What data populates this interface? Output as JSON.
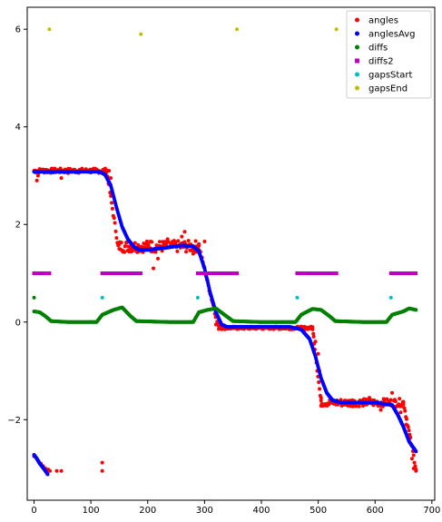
{
  "chart_data": {
    "type": "scatter",
    "title": "",
    "xlabel": "",
    "ylabel": "",
    "xlim": [
      -12,
      705
    ],
    "ylim": [
      -3.65,
      6.45
    ],
    "xticks": [
      0,
      100,
      200,
      300,
      400,
      500,
      600,
      700
    ],
    "xtick_labels": [
      "0",
      "100",
      "200",
      "300",
      "400",
      "500",
      "600",
      "700"
    ],
    "yticks": [
      -2,
      0,
      2,
      4,
      6
    ],
    "ytick_labels": [
      "−2",
      "0",
      "2",
      "4",
      "6"
    ],
    "grid": false,
    "legend_position": "top-right",
    "series": [
      {
        "name": "angles",
        "color": "#ff0000",
        "marker": "circle",
        "description_points": "noisy step signal",
        "segments": [
          {
            "x0": 0,
            "x1": 128,
            "y": 3.1,
            "noise": 0.05
          },
          {
            "x0": 128,
            "x1": 148,
            "y_from": 3.1,
            "y_to": 1.55
          },
          {
            "x0": 148,
            "x1": 290,
            "y": 1.55,
            "noise": 0.12
          },
          {
            "x0": 290,
            "x1": 325,
            "y_from": 1.55,
            "y_to": -0.12
          },
          {
            "x0": 325,
            "x1": 490,
            "y": -0.12,
            "noise": 0.03
          },
          {
            "x0": 490,
            "x1": 505,
            "y_from": -0.12,
            "y_to": -1.65
          },
          {
            "x0": 505,
            "x1": 650,
            "y": -1.65,
            "noise": 0.08
          },
          {
            "x0": 650,
            "x1": 672,
            "y_from": -1.65,
            "y_to": -3.0
          }
        ],
        "points": [
          [
            0,
            -2.75
          ],
          [
            5,
            -2.8
          ],
          [
            8,
            -2.85
          ],
          [
            12,
            -2.9
          ],
          [
            16,
            -2.95
          ],
          [
            20,
            -3.0
          ],
          [
            25,
            -3.02
          ],
          [
            28,
            -3.05
          ],
          [
            40,
            -3.05
          ],
          [
            48,
            -3.05
          ],
          [
            120,
            -2.88
          ],
          [
            120,
            -3.05
          ],
          [
            5,
            2.9
          ],
          [
            7,
            3.0
          ],
          [
            10,
            3.1
          ],
          [
            20,
            3.12
          ],
          [
            48,
            2.95
          ],
          [
            60,
            3.05
          ],
          [
            80,
            3.12
          ],
          [
            110,
            3.12
          ],
          [
            132,
            3.1
          ],
          [
            135,
            2.95
          ],
          [
            150,
            1.5
          ],
          [
            160,
            1.55
          ],
          [
            180,
            1.45
          ],
          [
            200,
            1.55
          ],
          [
            205,
            1.65
          ],
          [
            210,
            1.1
          ],
          [
            218,
            1.3
          ],
          [
            235,
            1.7
          ],
          [
            260,
            1.75
          ],
          [
            265,
            1.85
          ],
          [
            280,
            1.4
          ],
          [
            290,
            1.6
          ],
          [
            300,
            1.65
          ],
          [
            320,
            -0.05
          ],
          [
            330,
            -0.12
          ],
          [
            350,
            -0.12
          ],
          [
            400,
            -0.1
          ],
          [
            450,
            -0.12
          ],
          [
            485,
            -0.12
          ],
          [
            490,
            -0.15
          ],
          [
            492,
            -0.3
          ],
          [
            495,
            -0.4
          ],
          [
            500,
            -0.65
          ],
          [
            502,
            -1.0
          ],
          [
            505,
            -1.55
          ],
          [
            510,
            -1.7
          ],
          [
            560,
            -1.6
          ],
          [
            590,
            -1.55
          ],
          [
            610,
            -1.8
          ],
          [
            630,
            -1.45
          ],
          [
            645,
            -1.85
          ],
          [
            655,
            -2.1
          ],
          [
            660,
            -2.4
          ],
          [
            665,
            -2.8
          ],
          [
            668,
            -3.0
          ],
          [
            672,
            -3.05
          ]
        ]
      },
      {
        "name": "anglesAvg",
        "color": "#0000ff",
        "marker": "circle",
        "points": [
          [
            0,
            3.08
          ],
          [
            60,
            3.08
          ],
          [
            115,
            3.08
          ],
          [
            125,
            3.02
          ],
          [
            135,
            2.8
          ],
          [
            145,
            2.35
          ],
          [
            155,
            1.95
          ],
          [
            165,
            1.7
          ],
          [
            175,
            1.55
          ],
          [
            185,
            1.48
          ],
          [
            200,
            1.48
          ],
          [
            230,
            1.52
          ],
          [
            260,
            1.57
          ],
          [
            280,
            1.55
          ],
          [
            290,
            1.45
          ],
          [
            300,
            1.1
          ],
          [
            310,
            0.6
          ],
          [
            320,
            0.2
          ],
          [
            330,
            -0.05
          ],
          [
            340,
            -0.1
          ],
          [
            360,
            -0.1
          ],
          [
            400,
            -0.1
          ],
          [
            450,
            -0.1
          ],
          [
            470,
            -0.15
          ],
          [
            485,
            -0.35
          ],
          [
            495,
            -0.7
          ],
          [
            505,
            -1.15
          ],
          [
            515,
            -1.45
          ],
          [
            525,
            -1.6
          ],
          [
            540,
            -1.65
          ],
          [
            600,
            -1.65
          ],
          [
            630,
            -1.7
          ],
          [
            640,
            -1.9
          ],
          [
            650,
            -2.15
          ],
          [
            660,
            -2.45
          ],
          [
            672,
            -2.65
          ]
        ],
        "extra_points": [
          [
            0,
            -2.72
          ],
          [
            5,
            -2.8
          ],
          [
            10,
            -2.9
          ],
          [
            15,
            -2.97
          ],
          [
            20,
            -3.05
          ],
          [
            24,
            -3.12
          ]
        ]
      },
      {
        "name": "diffs",
        "color": "#008000",
        "marker": "circle",
        "points": [
          [
            0,
            0.5
          ],
          [
            0,
            0.22
          ],
          [
            10,
            0.2
          ],
          [
            20,
            0.12
          ],
          [
            30,
            0.02
          ],
          [
            60,
            0.0
          ],
          [
            90,
            0.0
          ],
          [
            110,
            0.0
          ],
          [
            120,
            0.15
          ],
          [
            140,
            0.25
          ],
          [
            155,
            0.3
          ],
          [
            170,
            0.12
          ],
          [
            180,
            0.02
          ],
          [
            240,
            0.0
          ],
          [
            280,
            0.0
          ],
          [
            290,
            0.2
          ],
          [
            305,
            0.25
          ],
          [
            320,
            0.28
          ],
          [
            335,
            0.15
          ],
          [
            350,
            0.02
          ],
          [
            400,
            0.0
          ],
          [
            460,
            0.0
          ],
          [
            470,
            0.15
          ],
          [
            490,
            0.27
          ],
          [
            505,
            0.25
          ],
          [
            520,
            0.12
          ],
          [
            530,
            0.02
          ],
          [
            580,
            0.0
          ],
          [
            620,
            0.0
          ],
          [
            630,
            0.15
          ],
          [
            650,
            0.22
          ],
          [
            660,
            0.28
          ],
          [
            672,
            0.25
          ]
        ]
      },
      {
        "name": "diffs2",
        "color": "#bf00bf",
        "marker": "square",
        "segments": [
          {
            "x0": 0,
            "x1": 27,
            "y": 1.0
          },
          {
            "x0": 120,
            "x1": 188,
            "y": 1.0
          },
          {
            "x0": 288,
            "x1": 357,
            "y": 1.0
          },
          {
            "x0": 463,
            "x1": 532,
            "y": 1.0
          },
          {
            "x0": 628,
            "x1": 672,
            "y": 1.0
          }
        ]
      },
      {
        "name": "gapsStart",
        "color": "#00bfbf",
        "marker": "circle",
        "points": [
          [
            120,
            0.5
          ],
          [
            288,
            0.5
          ],
          [
            463,
            0.5
          ],
          [
            628,
            0.5
          ]
        ]
      },
      {
        "name": "gapsEnd",
        "color": "#bfbf00",
        "marker": "circle",
        "points": [
          [
            27,
            6.0
          ],
          [
            188,
            5.9
          ],
          [
            357,
            6.0
          ],
          [
            532,
            6.0
          ]
        ]
      }
    ]
  }
}
